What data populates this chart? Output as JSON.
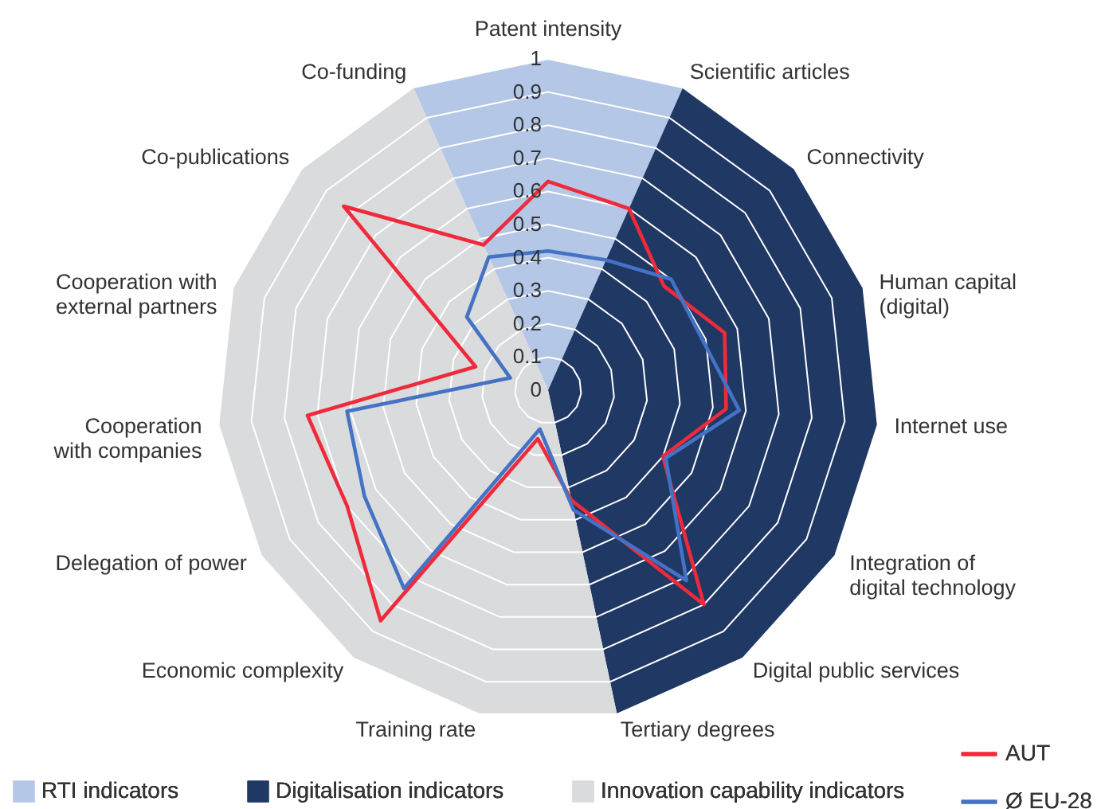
{
  "chart_data": {
    "type": "radar",
    "categories": [
      "Patent intensity",
      "Scientific articles",
      "Connectivity",
      "Human capital\n(digital)",
      "Internet use",
      "Integration of\ndigital technology",
      "Digital public services",
      "Tertiary degrees",
      "Training rate",
      "Economic complexity",
      "Delegation of power",
      "Cooperation\nwith companies",
      "Cooperation with\nexternal partners",
      "Co-publications",
      "Co-funding"
    ],
    "series": [
      {
        "name": "RTI indicators",
        "type": "area",
        "color": "#b4c7e7",
        "values": [
          1,
          1,
          0,
          0,
          0,
          0,
          0,
          0,
          0,
          0,
          0,
          0,
          0,
          0,
          1
        ]
      },
      {
        "name": "Digitalisation indicators",
        "type": "area",
        "color": "#1f3864",
        "values": [
          0,
          1,
          1,
          1,
          1,
          1,
          1,
          1,
          0,
          0,
          0,
          0,
          0,
          0,
          0
        ]
      },
      {
        "name": "Innovation capability indicators",
        "type": "area",
        "color": "#dadbdc",
        "values": [
          0,
          0,
          0,
          0,
          0,
          0,
          0,
          1,
          1,
          1,
          1,
          1,
          1,
          1,
          1
        ]
      },
      {
        "name": "AUT",
        "color": "#ee2a3b",
        "values": [
          0.63,
          0.6,
          0.47,
          0.56,
          0.54,
          0.4,
          0.8,
          0.34,
          0.15,
          0.86,
          0.7,
          0.73,
          0.23,
          0.83,
          0.48
        ]
      },
      {
        "name": "Ø EU-28",
        "color": "#4472c4",
        "values": [
          0.42,
          0.43,
          0.5,
          0.49,
          0.58,
          0.41,
          0.71,
          0.37,
          0.12,
          0.74,
          0.64,
          0.61,
          0.12,
          0.33,
          0.44
        ]
      }
    ],
    "ylim": [
      0,
      1
    ],
    "yticks": [
      0,
      0.1,
      0.2,
      0.3,
      0.4,
      0.5,
      0.6,
      0.7,
      0.8,
      0.9,
      1
    ],
    "grid": true,
    "legend": "bottom"
  }
}
